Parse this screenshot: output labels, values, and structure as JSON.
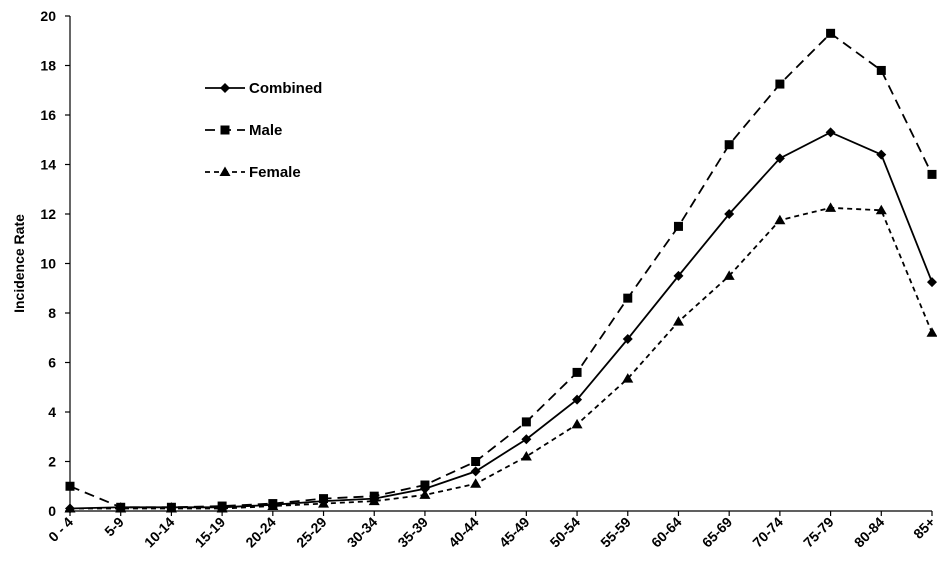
{
  "chart_data": {
    "type": "line",
    "title": "",
    "xlabel": "",
    "ylabel": "Incidence Rate",
    "ylim": [
      0,
      20
    ],
    "yticks": [
      0,
      2,
      4,
      6,
      8,
      10,
      12,
      14,
      16,
      18,
      20
    ],
    "grid": false,
    "legend_position": "top-left",
    "categories": [
      "0 - 4",
      "5-9",
      "10-14",
      "15-19",
      "20-24",
      "25-29",
      "30-34",
      "35-39",
      "40-44",
      "45-49",
      "50-54",
      "55-59",
      "60-64",
      "65-69",
      "70-74",
      "75-79",
      "80-84",
      "85+"
    ],
    "series": [
      {
        "name": "Combined",
        "line_style": "solid",
        "marker": "diamond",
        "color": "#000000",
        "values": [
          0.1,
          0.15,
          0.15,
          0.15,
          0.25,
          0.4,
          0.5,
          0.9,
          1.6,
          2.9,
          4.5,
          6.95,
          9.5,
          12.0,
          14.25,
          15.3,
          14.4,
          9.25
        ]
      },
      {
        "name": "Male",
        "line_style": "long-dash",
        "marker": "square",
        "color": "#000000",
        "values": [
          1.0,
          0.15,
          0.15,
          0.2,
          0.3,
          0.5,
          0.6,
          1.05,
          2.0,
          3.6,
          5.6,
          8.6,
          11.5,
          14.8,
          17.25,
          19.3,
          17.8,
          13.6
        ]
      },
      {
        "name": "Female",
        "line_style": "short-dash",
        "marker": "triangle",
        "color": "#000000",
        "values": [
          0.1,
          0.1,
          0.1,
          0.1,
          0.2,
          0.3,
          0.4,
          0.65,
          1.1,
          2.2,
          3.5,
          5.35,
          7.65,
          9.5,
          11.75,
          12.25,
          12.15,
          7.2
        ]
      }
    ]
  }
}
